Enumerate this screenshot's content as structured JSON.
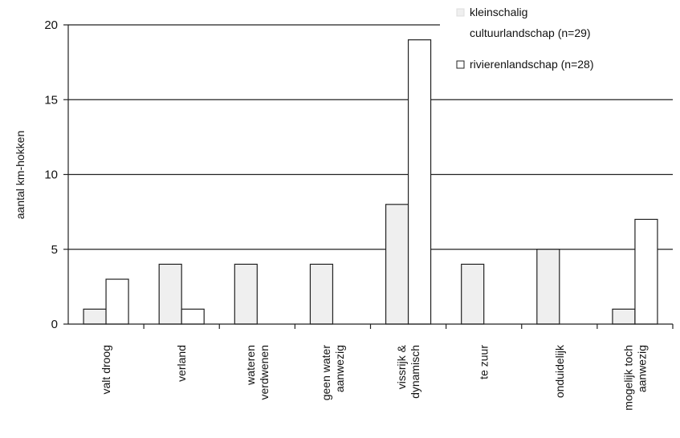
{
  "chart_data": {
    "type": "bar",
    "title": "",
    "xlabel": "",
    "ylabel": "aantal km-hokken",
    "ylim": [
      0,
      20
    ],
    "yticks": [
      0,
      5,
      10,
      15,
      20
    ],
    "grid": true,
    "legend_position": "top-right",
    "categories": [
      [
        "valt droog"
      ],
      [
        "verland"
      ],
      [
        "wateren",
        "verdwenen"
      ],
      [
        "geen water",
        "aanwezig"
      ],
      [
        "vissrijk &",
        "dynamisch"
      ],
      [
        "te zuur"
      ],
      [
        "onduidelijk"
      ],
      [
        "mogelijk toch",
        "aanwezig"
      ]
    ],
    "series": [
      {
        "name": "kleinschalig cultuurlandschap (n=29)",
        "legend_lines": [
          "kleinschalig",
          "cultuurlandschap (n=29)"
        ],
        "color": "#efefef",
        "values": [
          1,
          4,
          4,
          4,
          8,
          4,
          5,
          1
        ]
      },
      {
        "name": "rivierenlandschap (n=28)",
        "legend_lines": [
          "rivierenlandschap (n=28)"
        ],
        "color": "#ffffff",
        "values": [
          3,
          1,
          0,
          0,
          19,
          0,
          0,
          7
        ]
      }
    ]
  }
}
